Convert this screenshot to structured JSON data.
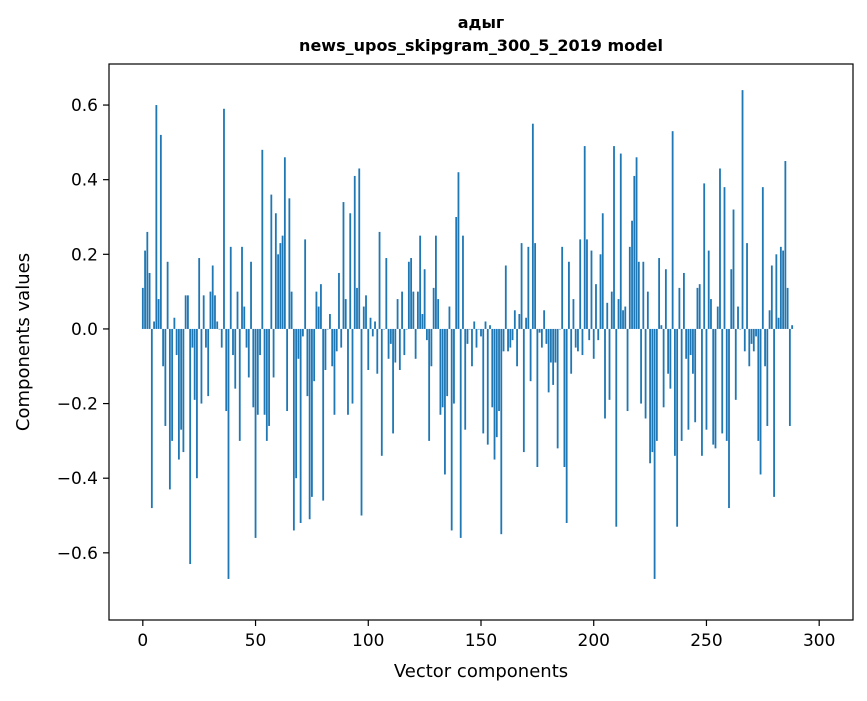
{
  "chart_data": {
    "type": "bar",
    "title_line1": "адыг",
    "title_line2": "news_upos_skipgram_300_5_2019 model",
    "xlabel": "Vector components",
    "ylabel": "Components values",
    "xlim": [
      -15,
      315
    ],
    "ylim": [
      -0.78,
      0.71
    ],
    "x_ticks": [
      0,
      50,
      100,
      150,
      200,
      250,
      300
    ],
    "x_tick_labels": [
      "0",
      "50",
      "100",
      "150",
      "200",
      "250",
      "300"
    ],
    "y_ticks": [
      -0.6,
      -0.4,
      -0.2,
      0.0,
      0.2,
      0.4,
      0.6
    ],
    "y_tick_labels": [
      "−0.6",
      "−0.4",
      "−0.2",
      "0.0",
      "0.2",
      "0.4",
      "0.6"
    ],
    "bar_color": "#1f77b4",
    "grid": false,
    "values": [
      0.11,
      0.21,
      0.26,
      0.15,
      -0.48,
      0.02,
      0.6,
      0.08,
      0.52,
      -0.1,
      -0.26,
      0.18,
      -0.43,
      -0.3,
      0.03,
      -0.07,
      -0.35,
      -0.27,
      -0.33,
      0.09,
      0.09,
      -0.63,
      -0.05,
      -0.19,
      -0.4,
      0.19,
      -0.2,
      0.09,
      -0.05,
      -0.18,
      0.1,
      0.17,
      0.09,
      0.02,
      0.0,
      -0.05,
      0.59,
      -0.22,
      -0.67,
      0.22,
      -0.07,
      -0.16,
      0.1,
      -0.3,
      0.22,
      0.06,
      -0.05,
      -0.13,
      0.18,
      -0.21,
      -0.56,
      -0.23,
      -0.07,
      0.48,
      -0.23,
      -0.3,
      -0.26,
      0.36,
      -0.13,
      0.31,
      0.2,
      0.23,
      0.25,
      0.46,
      -0.22,
      0.35,
      0.1,
      -0.54,
      -0.4,
      -0.08,
      -0.52,
      -0.02,
      0.24,
      -0.18,
      -0.51,
      -0.45,
      -0.14,
      0.1,
      0.06,
      0.12,
      -0.46,
      -0.11,
      0.0,
      0.04,
      -0.1,
      -0.23,
      -0.06,
      0.15,
      -0.05,
      0.34,
      0.08,
      -0.23,
      0.31,
      -0.2,
      0.41,
      0.11,
      0.43,
      -0.5,
      0.06,
      0.09,
      -0.11,
      0.03,
      -0.02,
      0.02,
      -0.12,
      0.26,
      -0.34,
      0.0,
      0.19,
      -0.08,
      -0.04,
      -0.28,
      -0.09,
      0.08,
      -0.11,
      0.1,
      -0.07,
      0.0,
      0.18,
      0.19,
      0.1,
      -0.08,
      0.1,
      0.25,
      0.04,
      0.16,
      -0.03,
      -0.3,
      -0.1,
      0.11,
      0.25,
      0.08,
      -0.23,
      -0.21,
      -0.39,
      -0.18,
      0.06,
      -0.54,
      -0.2,
      0.3,
      0.42,
      -0.56,
      0.25,
      -0.27,
      -0.04,
      0.0,
      -0.1,
      0.02,
      -0.05,
      0.0,
      -0.02,
      -0.28,
      0.02,
      -0.31,
      0.01,
      -0.21,
      -0.35,
      -0.29,
      -0.22,
      -0.55,
      -0.06,
      0.17,
      -0.06,
      -0.05,
      -0.03,
      0.05,
      -0.1,
      0.04,
      0.23,
      -0.33,
      0.03,
      0.22,
      -0.14,
      0.55,
      0.23,
      -0.37,
      -0.01,
      -0.05,
      0.05,
      -0.04,
      -0.17,
      -0.09,
      -0.15,
      -0.09,
      -0.32,
      0.0,
      0.22,
      -0.37,
      -0.52,
      0.18,
      -0.12,
      0.08,
      -0.05,
      -0.06,
      0.24,
      -0.07,
      0.49,
      0.24,
      -0.03,
      0.21,
      -0.08,
      0.12,
      -0.03,
      0.2,
      0.31,
      -0.24,
      0.07,
      -0.19,
      0.1,
      0.49,
      -0.53,
      0.08,
      0.47,
      0.05,
      0.06,
      -0.22,
      0.22,
      0.29,
      0.41,
      0.46,
      0.18,
      -0.2,
      0.18,
      -0.24,
      0.1,
      -0.36,
      -0.33,
      -0.67,
      -0.3,
      0.19,
      0.01,
      -0.21,
      0.16,
      -0.12,
      -0.16,
      0.53,
      -0.34,
      -0.53,
      0.11,
      -0.3,
      0.15,
      -0.08,
      -0.27,
      -0.07,
      -0.12,
      -0.25,
      0.11,
      0.12,
      -0.34,
      0.39,
      -0.27,
      0.21,
      0.08,
      -0.31,
      -0.32,
      0.06,
      0.43,
      -0.28,
      0.38,
      -0.3,
      -0.48,
      0.16,
      0.32,
      -0.19,
      0.06,
      0.0,
      0.64,
      -0.06,
      0.23,
      -0.1,
      -0.04,
      -0.06,
      -0.02,
      -0.3,
      -0.39,
      0.38,
      -0.1,
      -0.26,
      0.05,
      0.17,
      -0.45,
      0.2,
      0.03,
      0.22,
      0.21,
      0.45,
      0.11,
      -0.26,
      0.01
    ]
  }
}
